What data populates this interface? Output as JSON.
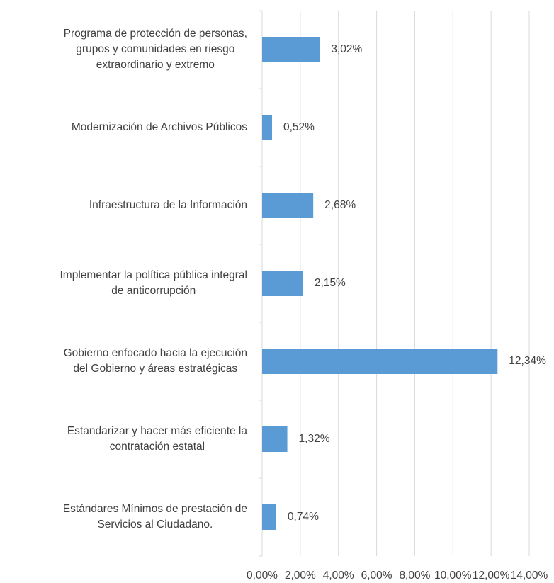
{
  "chart_data": {
    "type": "barh",
    "categories": [
      [
        "Programa de protección de personas,",
        "grupos y comunidades en riesgo",
        "extraordinario y extremo"
      ],
      [
        "Modernización de Archivos Públicos"
      ],
      [
        "Infraestructura de la Información"
      ],
      [
        "Implementar la política pública integral",
        "de anticorrupción"
      ],
      [
        "Gobierno enfocado hacia la ejecución",
        "del Gobierno y áreas estratégicas"
      ],
      [
        "Estandarizar y hacer más eficiente la",
        "contratación estatal"
      ],
      [
        "Estándares Mínimos de prestación de",
        "Servicios  al Ciudadano."
      ]
    ],
    "values": [
      3.02,
      0.52,
      2.68,
      2.15,
      12.34,
      1.32,
      0.74
    ],
    "value_labels": [
      "3,02%",
      "0,52%",
      "2,68%",
      "2,15%",
      "12,34%",
      "1,32%",
      "0,74%"
    ],
    "color": "#5b9bd5",
    "xlim": [
      0,
      14
    ],
    "xticks": [
      {
        "value": 0,
        "label": "0,00%"
      },
      {
        "value": 2,
        "label": "2,00%"
      },
      {
        "value": 4,
        "label": "4,00%"
      },
      {
        "value": 6,
        "label": "6,00%"
      },
      {
        "value": 8,
        "label": "8,00%"
      },
      {
        "value": 10,
        "label": "10,00%"
      },
      {
        "value": 12,
        "label": "12,00%"
      },
      {
        "value": 14,
        "label": "14,00%"
      }
    ],
    "grid": true
  }
}
